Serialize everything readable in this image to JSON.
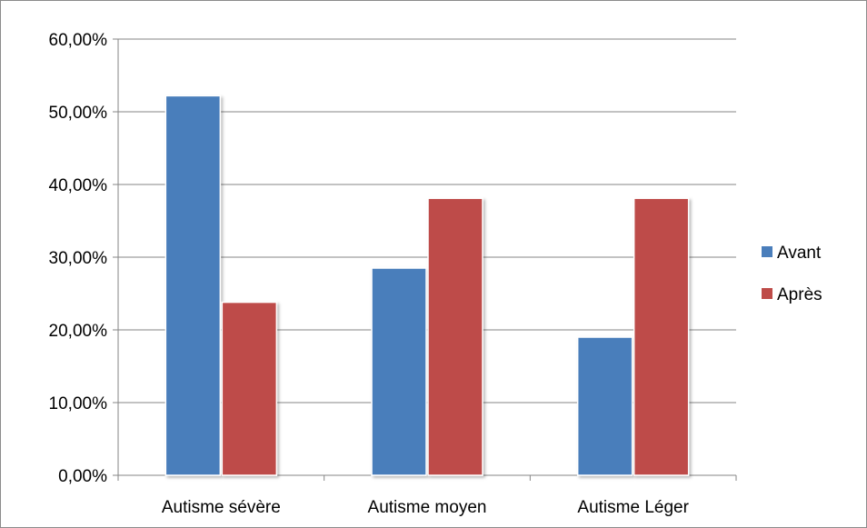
{
  "chart_data": {
    "type": "bar",
    "categories": [
      "Autisme sévère",
      "Autisme moyen",
      "Autisme Léger"
    ],
    "series": [
      {
        "name": "Avant",
        "values": [
          52.2,
          28.5,
          19.0
        ],
        "color": "#4a7ebb"
      },
      {
        "name": "Après",
        "values": [
          23.8,
          38.1,
          38.1
        ],
        "color": "#be4b48"
      }
    ],
    "title": "",
    "xlabel": "",
    "ylabel": "",
    "ylim": [
      0,
      60
    ],
    "yticks": [
      0,
      10,
      20,
      30,
      40,
      50,
      60
    ],
    "ytick_labels": [
      "0,00%",
      "10,00%",
      "20,00%",
      "30,00%",
      "40,00%",
      "50,00%",
      "60,00%"
    ],
    "grid": true,
    "legend_position": "right"
  }
}
